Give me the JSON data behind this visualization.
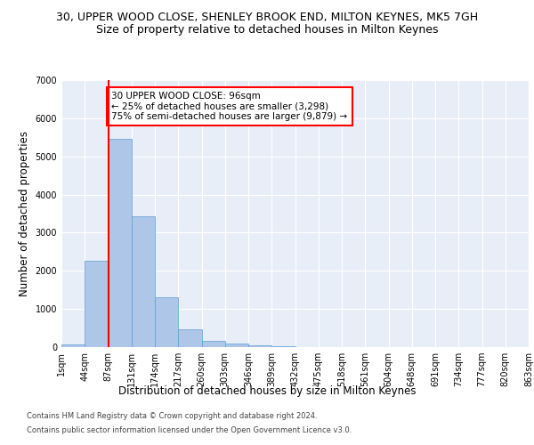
{
  "title_line1": "30, UPPER WOOD CLOSE, SHENLEY BROOK END, MILTON KEYNES, MK5 7GH",
  "title_line2": "Size of property relative to detached houses in Milton Keynes",
  "xlabel": "Distribution of detached houses by size in Milton Keynes",
  "ylabel": "Number of detached properties",
  "footer_line1": "Contains HM Land Registry data © Crown copyright and database right 2024.",
  "footer_line2": "Contains public sector information licensed under the Open Government Licence v3.0.",
  "bin_labels": [
    "1sqm",
    "44sqm",
    "87sqm",
    "131sqm",
    "174sqm",
    "217sqm",
    "260sqm",
    "303sqm",
    "346sqm",
    "389sqm",
    "432sqm",
    "475sqm",
    "518sqm",
    "561sqm",
    "604sqm",
    "648sqm",
    "691sqm",
    "734sqm",
    "777sqm",
    "820sqm",
    "863sqm"
  ],
  "bar_values": [
    75,
    2270,
    5450,
    3430,
    1310,
    460,
    165,
    95,
    55,
    30,
    0,
    0,
    0,
    0,
    0,
    0,
    0,
    0,
    0,
    0
  ],
  "bar_color": "#aec6e8",
  "bar_edge_color": "#5a9fd4",
  "vline_x": 2.0,
  "vline_color": "red",
  "annotation_text": "30 UPPER WOOD CLOSE: 96sqm\n← 25% of detached houses are smaller (3,298)\n75% of semi-detached houses are larger (9,879) →",
  "annotation_box_color": "white",
  "annotation_box_edge": "red",
  "ylim": [
    0,
    7000
  ],
  "yticks": [
    0,
    1000,
    2000,
    3000,
    4000,
    5000,
    6000,
    7000
  ],
  "bg_color": "#e8eef7",
  "grid_color": "white",
  "title_fontsize": 9,
  "subtitle_fontsize": 9,
  "axis_label_fontsize": 8.5,
  "tick_fontsize": 7,
  "annotation_fontsize": 7.5,
  "footer_fontsize": 6
}
